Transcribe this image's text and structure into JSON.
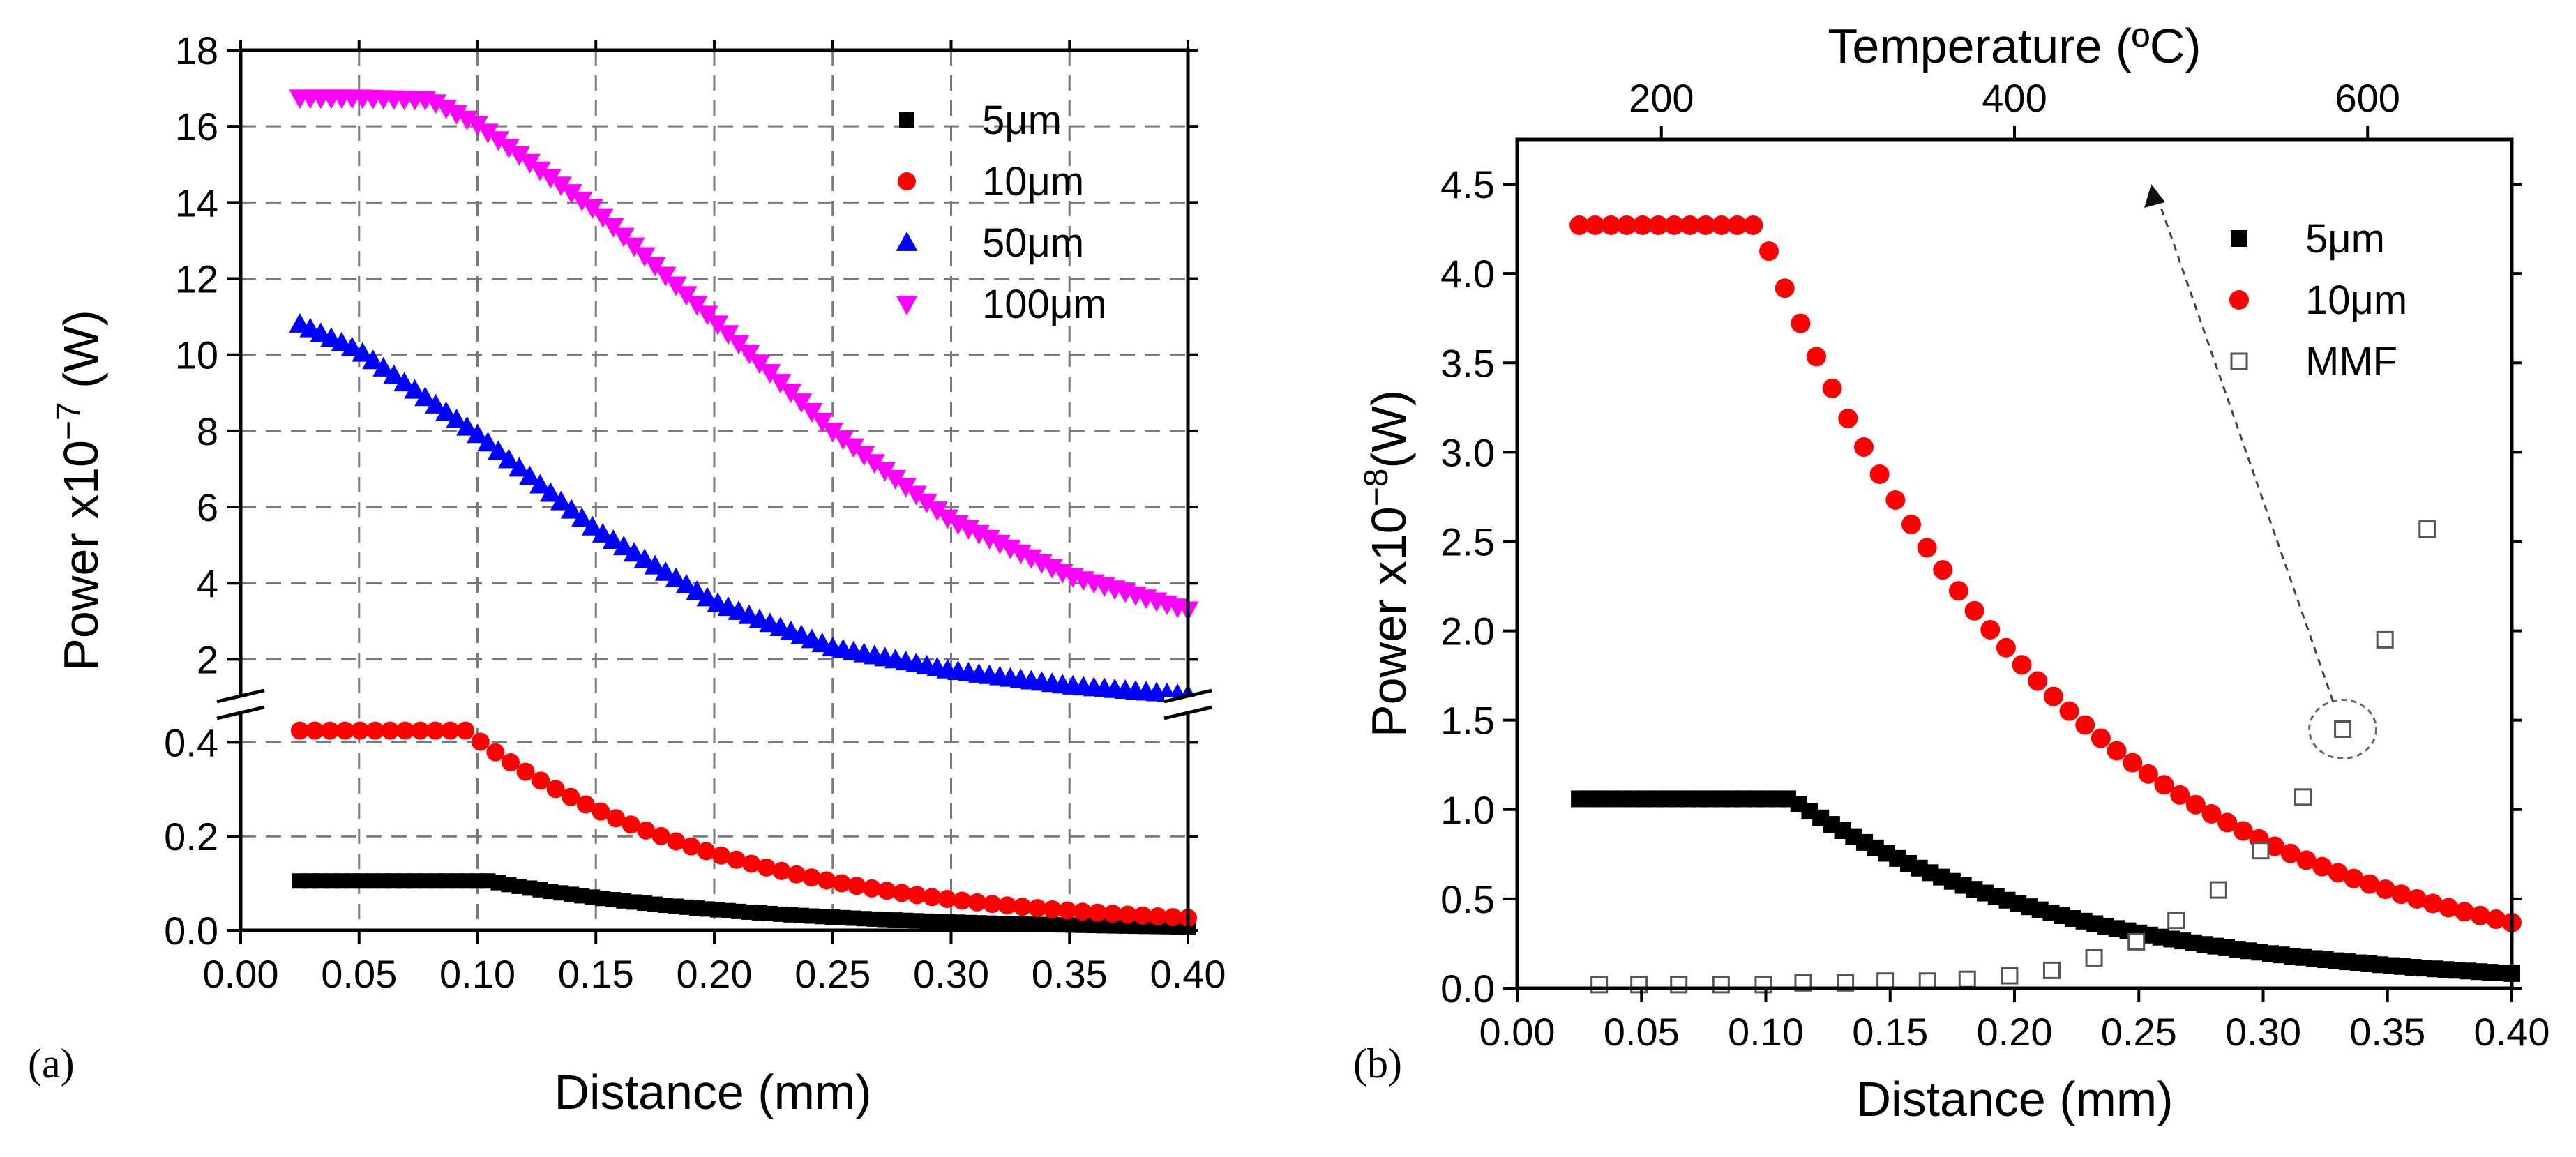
{
  "chart_data": [
    {
      "panel_label": "(a)",
      "type": "scatter",
      "xlabel": "Distance (mm)",
      "ylabel_prefix": "Power x10",
      "ylabel_exp": "−7",
      "ylabel_suffix": " (W)",
      "xlim": [
        0.0,
        0.4
      ],
      "x_ticks": [
        "0.00",
        "0.05",
        "0.10",
        "0.15",
        "0.20",
        "0.25",
        "0.30",
        "0.35",
        "0.40"
      ],
      "y_break": true,
      "y_upper_range": [
        1.0,
        18.0
      ],
      "y_upper_ticks": [
        "2",
        "4",
        "6",
        "8",
        "10",
        "12",
        "14",
        "16",
        "18"
      ],
      "y_lower_range": [
        0.0,
        0.46
      ],
      "y_lower_ticks": [
        "0.0",
        "0.2",
        "0.4"
      ],
      "grid": true,
      "legend_position": "top-right",
      "series": [
        {
          "name": "5μm",
          "marker": "square",
          "color": "#000000",
          "axis": "lower",
          "x_start": 0.025,
          "x_end": 0.4,
          "n_points": 86,
          "plateau_value": 0.105,
          "knee_x": 0.105,
          "tail_decay_per_mm": 9.1
        },
        {
          "name": "10μm",
          "marker": "circle",
          "color": "#ff0000",
          "axis": "lower",
          "x_start": 0.025,
          "x_end": 0.4,
          "n_points": 60,
          "plateau_value": 0.425,
          "knee_x": 0.095,
          "tail_decay_per_mm": 9.1
        },
        {
          "name": "50μm",
          "marker": "triangle-up",
          "color": "#0000ff",
          "axis": "upper",
          "x_start": 0.025,
          "x_end": 0.4,
          "n_points": 86,
          "curve_x": [
            0.025,
            0.05,
            0.1,
            0.15,
            0.2,
            0.25,
            0.3,
            0.35,
            0.4
          ],
          "curve_y": [
            10.8,
            10.1,
            7.9,
            5.4,
            3.5,
            2.3,
            1.7,
            1.3,
            1.05
          ]
        },
        {
          "name": "100μm",
          "marker": "triangle-down",
          "color": "#ff00ff",
          "axis": "upper",
          "x_start": 0.025,
          "x_end": 0.4,
          "n_points": 86,
          "curve_x": [
            0.025,
            0.05,
            0.08,
            0.1,
            0.15,
            0.2,
            0.25,
            0.3,
            0.35,
            0.4
          ],
          "curve_y": [
            16.75,
            16.75,
            16.7,
            16.05,
            13.8,
            10.9,
            8.0,
            5.65,
            4.2,
            3.3
          ]
        }
      ]
    },
    {
      "panel_label": "(b)",
      "type": "scatter",
      "xlabel": "Distance (mm)",
      "top_xlabel": "Temperature (ºC)",
      "top_x_ticks": [
        "200",
        "400",
        "600"
      ],
      "top_x_tick_positions_mm": [
        0.058,
        0.2,
        0.342
      ],
      "ylabel_prefix": "Power x10",
      "ylabel_exp": "−8",
      "ylabel_suffix": "(W)",
      "xlim": [
        0.0,
        0.4
      ],
      "ylim": [
        0.0,
        4.75
      ],
      "x_ticks": [
        "0.00",
        "0.05",
        "0.10",
        "0.15",
        "0.20",
        "0.25",
        "0.30",
        "0.35",
        "0.40"
      ],
      "y_ticks": [
        "0.0",
        "0.5",
        "1.0",
        "1.5",
        "2.0",
        "2.5",
        "3.0",
        "3.5",
        "4.0",
        "4.5"
      ],
      "grid": false,
      "legend_position": "top-right",
      "series": [
        {
          "name": "5μm",
          "marker": "square",
          "color": "#000000",
          "x_start": 0.025,
          "x_end": 0.4,
          "n_points": 86,
          "plateau_value": 1.06,
          "knee_x": 0.11,
          "tail_decay_per_mm": 8.8
        },
        {
          "name": "10μm",
          "marker": "circle",
          "color": "#ff0000",
          "x_start": 0.025,
          "x_end": 0.4,
          "n_points": 60,
          "plateau_value": 4.27,
          "knee_x": 0.097,
          "tail_decay_per_mm": 8.1
        },
        {
          "name": "MMF",
          "marker": "open-square",
          "color": "#555555",
          "x": [
            0.033,
            0.049,
            0.065,
            0.082,
            0.099,
            0.115,
            0.132,
            0.148,
            0.165,
            0.181,
            0.198,
            0.215,
            0.232,
            0.249,
            0.265,
            0.282,
            0.299,
            0.316,
            0.332,
            0.349,
            0.366
          ],
          "y": [
            0.02,
            0.02,
            0.02,
            0.02,
            0.02,
            0.03,
            0.03,
            0.04,
            0.04,
            0.05,
            0.07,
            0.1,
            0.17,
            0.26,
            0.38,
            0.55,
            0.77,
            1.07,
            1.45,
            1.95,
            2.57
          ]
        }
      ],
      "annotation": {
        "type": "dashed-arrow",
        "from": [
          0.332,
          1.45
        ],
        "to": [
          0.255,
          4.5
        ],
        "ellipse_around": [
          0.332,
          1.45
        ]
      }
    }
  ]
}
